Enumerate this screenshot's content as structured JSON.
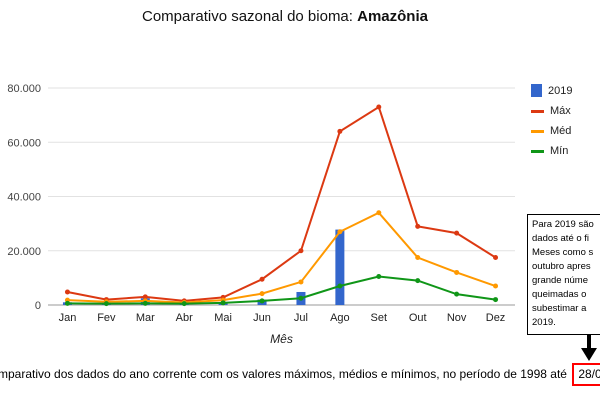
{
  "header": {
    "title_prefix": "Comparativo sazonal do bioma: ",
    "title_bold": "Amazônia"
  },
  "chart_data": {
    "type": "combo",
    "title": "Comparativo sazonal do bioma: Amazônia",
    "xlabel": "Mês",
    "ylabel": "",
    "ylim": [
      0,
      80000
    ],
    "grid": true,
    "legend_position": "right",
    "categories": [
      "Jan",
      "Fev",
      "Mar",
      "Abr",
      "Mai",
      "Jun",
      "Jul",
      "Ago",
      "Set",
      "Out",
      "Nov",
      "Dez"
    ],
    "yticks": [
      {
        "value": 0,
        "label": "0"
      },
      {
        "value": 20000,
        "label": "20.000"
      },
      {
        "value": 40000,
        "label": "40.000"
      },
      {
        "value": 60000,
        "label": "60.000"
      },
      {
        "value": 80000,
        "label": "80.000"
      }
    ],
    "series": [
      {
        "name": "2019",
        "type": "bar",
        "color": "#3366cc",
        "values": [
          1000,
          800,
          2500,
          600,
          700,
          2000,
          4800,
          27800,
          null,
          null,
          null,
          null
        ]
      },
      {
        "name": "Máx",
        "type": "line",
        "color": "#dc3912",
        "values": [
          4800,
          2000,
          3000,
          1500,
          2800,
          9500,
          20000,
          64000,
          73000,
          29000,
          26500,
          17500
        ]
      },
      {
        "name": "Méd",
        "type": "line",
        "color": "#ff9900",
        "values": [
          1800,
          1200,
          1500,
          900,
          1800,
          4200,
          8500,
          27000,
          34000,
          17500,
          12000,
          7000
        ]
      },
      {
        "name": "Mín",
        "type": "line",
        "color": "#109618",
        "values": [
          600,
          500,
          600,
          500,
          800,
          1500,
          2500,
          7000,
          10500,
          9000,
          4000,
          2000
        ]
      }
    ]
  },
  "note": {
    "lines": [
      "Para 2019 são",
      "dados até o fi",
      "Meses como s",
      "outubro apres",
      "grande núme",
      "queimadas o",
      "subestimar a",
      "2019."
    ]
  },
  "caption": {
    "text": "mparativo dos dados do ano corrente com os valores máximos, médios e mínimos, no período de 1998 até",
    "date_highlight": "28/0"
  }
}
